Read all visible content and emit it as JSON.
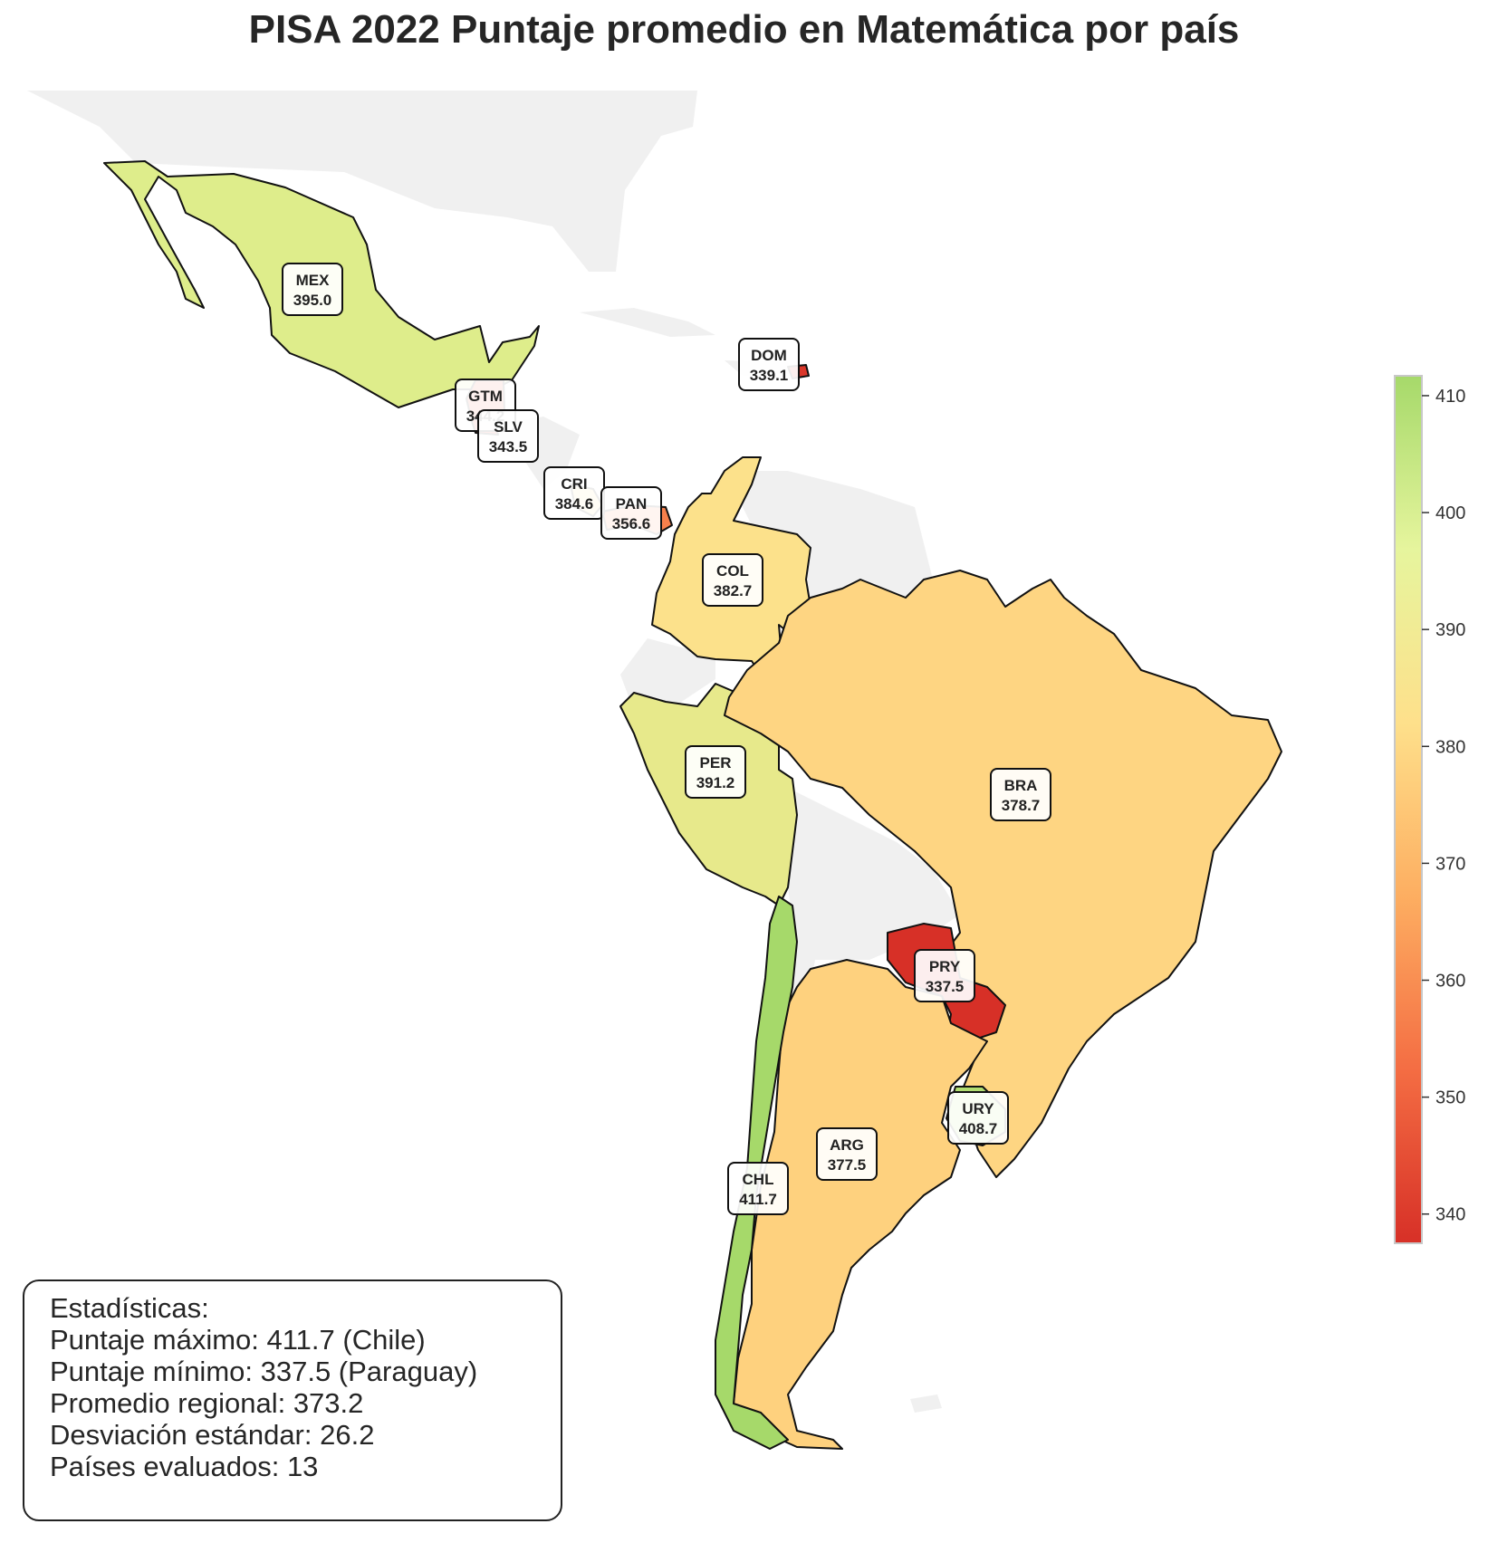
{
  "title": "PISA 2022 Puntaje promedio en Matemática por país",
  "colors": {
    "no_data": "#f0f0f0",
    "border": "#111111",
    "colormap": "RdYlGn",
    "scale_stops": [
      "#d73027",
      "#f46d43",
      "#fdae61",
      "#fee08b",
      "#d9ef8b",
      "#a6d96a"
    ]
  },
  "chart_data": {
    "type": "choropleth",
    "metric": "Puntaje promedio en Matemática",
    "countries": [
      {
        "code": "MEX",
        "score": 395.0
      },
      {
        "code": "GTM",
        "score": 344.2
      },
      {
        "code": "SLV",
        "score": 343.5
      },
      {
        "code": "DOM",
        "score": 339.1
      },
      {
        "code": "CRI",
        "score": 384.6
      },
      {
        "code": "PAN",
        "score": 356.6
      },
      {
        "code": "COL",
        "score": 382.7
      },
      {
        "code": "PER",
        "score": 391.2
      },
      {
        "code": "BRA",
        "score": 378.7
      },
      {
        "code": "PRY",
        "score": 337.5
      },
      {
        "code": "URY",
        "score": 408.7
      },
      {
        "code": "ARG",
        "score": 377.5
      },
      {
        "code": "CHL",
        "score": 411.7
      }
    ],
    "colorbar": {
      "range": [
        337.5,
        411.7
      ],
      "ticks": [
        "340",
        "350",
        "360",
        "370",
        "380",
        "390",
        "400",
        "410"
      ]
    }
  },
  "stats": {
    "heading": "Estadísticas:",
    "lines": [
      "Puntaje máximo: 411.7 (Chile)",
      "Puntaje mínimo: 337.5 (Paraguay)",
      "Promedio regional: 373.2",
      "Desviación estándar: 26.2",
      "Países evaluados: 13"
    ]
  }
}
